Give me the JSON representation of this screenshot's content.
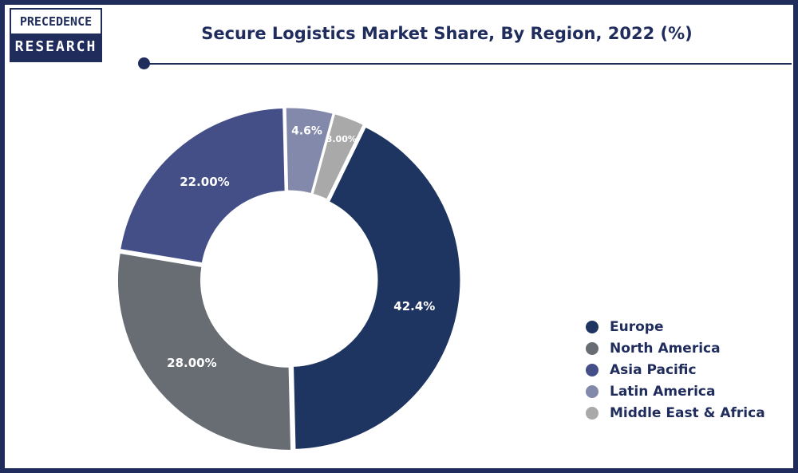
{
  "logo": {
    "line1": "PRECEDENCE",
    "line2": "RESEARCH"
  },
  "chart_data": {
    "type": "pie",
    "title": "Secure Logistics Market Share, By Region, 2022 (%)",
    "categories": [
      "Europe",
      "North America",
      "Asia Pacific",
      "Latin America",
      "Middle East & Africa"
    ],
    "values": [
      42.4,
      28.0,
      22.0,
      4.6,
      3.0
    ],
    "data_labels": [
      "42.4%",
      "28.00%",
      "22.00%",
      "4.6%",
      "3.00%"
    ],
    "colors": [
      "#1e3461",
      "#676d72",
      "#434f86",
      "#8289ab",
      "#a9a9a9"
    ],
    "donut": true,
    "legend_position": "bottom-right"
  }
}
